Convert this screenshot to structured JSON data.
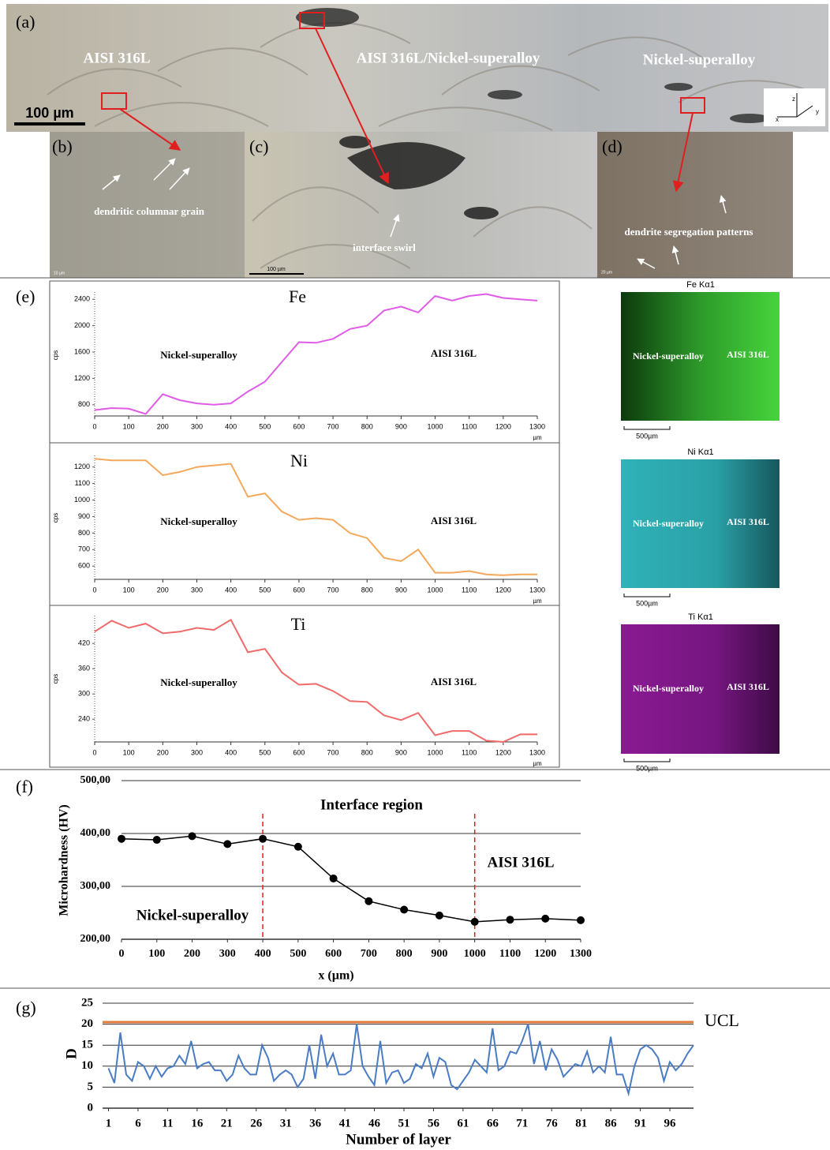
{
  "micrographs": [
    {
      "label": "(a)",
      "texts": [
        "AISI 316L",
        "AISI 316L/Nickel-superalloy",
        "Nickel-superalloy"
      ],
      "scale": "100 µm",
      "axes": [
        "z",
        "x",
        "y"
      ]
    },
    {
      "label": "(b)",
      "texts": [
        "dendritic columnar grain"
      ],
      "scale": "10 µm"
    },
    {
      "label": "(c)",
      "texts": [
        "interface swirl"
      ],
      "scale": "100 µm"
    },
    {
      "label": "(d)",
      "texts": [
        "dendrite segregation patterns"
      ],
      "scale": "20 µm"
    }
  ],
  "eds_maps": [
    {
      "title": "Fe Kα1",
      "texts": [
        "Nickel-superalloy",
        "AISI 316L"
      ],
      "scale": "500µm"
    },
    {
      "title": "Ni Kα1",
      "texts": [
        "Nickel-superalloy",
        "AISI 316L"
      ],
      "scale": "500µm"
    },
    {
      "title": "Ti Kα1",
      "texts": [
        "Nickel-superalloy",
        "AISI 316L"
      ],
      "scale": "500µm"
    }
  ],
  "panel_labels": [
    "(e)",
    "(f)",
    "(g)"
  ],
  "chart_data": [
    {
      "type": "line",
      "title": "Fe",
      "y_label": "cps",
      "x_unit": "µm",
      "annotations": [
        "Nickel-superalloy",
        "AISI 316L"
      ],
      "color": "#e05ce6",
      "x": [
        0,
        50,
        100,
        150,
        200,
        250,
        300,
        350,
        400,
        450,
        500,
        550,
        600,
        650,
        700,
        750,
        800,
        850,
        900,
        950,
        1000,
        1050,
        1100,
        1150,
        1200,
        1250,
        1300
      ],
      "values": [
        720,
        750,
        740,
        660,
        960,
        870,
        820,
        800,
        820,
        1000,
        1150,
        1450,
        1750,
        1740,
        1800,
        1950,
        2000,
        2230,
        2290,
        2200,
        2450,
        2380,
        2450,
        2480,
        2420,
        2400,
        2380
      ],
      "xlim": [
        0,
        1300
      ],
      "xticks": [
        0,
        100,
        200,
        300,
        400,
        500,
        600,
        700,
        800,
        900,
        1000,
        1100,
        1200,
        1300
      ],
      "ylim": [
        630,
        2510
      ],
      "yticks": [
        800,
        1200,
        1600,
        2000,
        2400
      ],
      "grid": false
    },
    {
      "type": "line",
      "title": "Ni",
      "y_label": "cps",
      "x_unit": "µm",
      "annotations": [
        "Nickel-superalloy",
        "AISI 316L"
      ],
      "color": "#f5a85a",
      "x": [
        0,
        50,
        100,
        150,
        200,
        250,
        300,
        350,
        400,
        450,
        500,
        550,
        600,
        650,
        700,
        750,
        800,
        850,
        900,
        950,
        1000,
        1050,
        1100,
        1150,
        1200,
        1250,
        1300
      ],
      "values": [
        1250,
        1240,
        1240,
        1240,
        1150,
        1170,
        1200,
        1210,
        1220,
        1020,
        1040,
        930,
        880,
        890,
        880,
        800,
        770,
        650,
        630,
        700,
        560,
        560,
        570,
        550,
        545,
        550,
        550
      ],
      "xlim": [
        0,
        1300
      ],
      "xticks": [
        0,
        100,
        200,
        300,
        400,
        500,
        600,
        700,
        800,
        900,
        1000,
        1100,
        1200,
        1300
      ],
      "ylim": [
        520,
        1270
      ],
      "yticks": [
        600,
        700,
        800,
        900,
        1000,
        1100,
        1200
      ],
      "grid": false
    },
    {
      "type": "line",
      "title": "Ti",
      "y_label": "cps",
      "x_unit": "µm",
      "annotations": [
        "Nickel-superalloy",
        "AISI 316L"
      ],
      "color": "#f06a6a",
      "x": [
        0,
        50,
        100,
        150,
        200,
        250,
        300,
        350,
        400,
        450,
        500,
        550,
        600,
        650,
        700,
        750,
        800,
        850,
        900,
        950,
        1000,
        1050,
        1100,
        1150,
        1200,
        1250,
        1300
      ],
      "values": [
        448,
        474,
        457,
        467,
        444,
        448,
        457,
        452,
        476,
        399,
        407,
        351,
        322,
        324,
        307,
        283,
        281,
        249,
        238,
        255,
        202,
        212,
        212,
        189,
        186,
        204,
        204
      ],
      "xlim": [
        0,
        1300
      ],
      "xticks": [
        0,
        100,
        200,
        300,
        400,
        500,
        600,
        700,
        800,
        900,
        1000,
        1100,
        1200,
        1300
      ],
      "ylim": [
        186,
        486
      ],
      "yticks": [
        240,
        300,
        360,
        420
      ],
      "grid": false
    },
    {
      "type": "line",
      "x_label": "x (µm)",
      "y_label": "Microhardness (HV)",
      "annotations": [
        "Interface region",
        "AISI 316L",
        "Nickel-superalloy"
      ],
      "color": "#000000",
      "markers": true,
      "x": [
        0,
        100,
        200,
        300,
        400,
        500,
        600,
        700,
        800,
        900,
        1000,
        1100,
        1200,
        1300
      ],
      "values": [
        390,
        388,
        395,
        380,
        390,
        375,
        315,
        272,
        256,
        245,
        233,
        237,
        239,
        236
      ],
      "vlines": [
        400,
        1000
      ],
      "vline_color": "#e02020",
      "xlim": [
        0,
        1300
      ],
      "xticks": [
        0,
        100,
        200,
        300,
        400,
        500,
        600,
        700,
        800,
        900,
        1000,
        1100,
        1200,
        1300
      ],
      "ylim": [
        200,
        500
      ],
      "yticks": [
        {
          "value": 200,
          "label": "200,00"
        },
        {
          "value": 300,
          "label": "300,00"
        },
        {
          "value": 400,
          "label": "400,00"
        },
        {
          "value": 500,
          "label": "500,00"
        }
      ],
      "grid": true
    },
    {
      "type": "line",
      "x_label": "Number of layer",
      "y_label": "D",
      "color": "#4a7cc4",
      "ucl": {
        "label": "UCL",
        "value": 20.5,
        "color": "#e07b39"
      },
      "x": [
        1,
        2,
        3,
        4,
        5,
        6,
        7,
        8,
        9,
        10,
        11,
        12,
        13,
        14,
        15,
        16,
        17,
        18,
        19,
        20,
        21,
        22,
        23,
        24,
        25,
        26,
        27,
        28,
        29,
        30,
        31,
        32,
        33,
        34,
        35,
        36,
        37,
        38,
        39,
        40,
        41,
        42,
        43,
        44,
        45,
        46,
        47,
        48,
        49,
        50,
        51,
        52,
        53,
        54,
        55,
        56,
        57,
        58,
        59,
        60,
        61,
        62,
        63,
        64,
        65,
        66,
        67,
        68,
        69,
        70,
        71,
        72,
        73,
        74,
        75,
        76,
        77,
        78,
        79,
        80,
        81,
        82,
        83,
        84,
        85,
        86,
        87,
        88,
        89,
        90,
        91,
        92,
        93,
        94,
        95,
        96,
        97,
        98,
        99,
        100
      ],
      "values": [
        9.5,
        6,
        18,
        8,
        6.5,
        11,
        10,
        7,
        10,
        7.5,
        9.5,
        10,
        12.5,
        10.5,
        16,
        9.5,
        10.5,
        11,
        9,
        9,
        6.5,
        8,
        12.5,
        9.5,
        8,
        8,
        15,
        12,
        6.5,
        8,
        9,
        8,
        5,
        7,
        15,
        7,
        17.5,
        10,
        13,
        8,
        8,
        9,
        20,
        10,
        7.5,
        5.5,
        16,
        6,
        8.5,
        9,
        6,
        7,
        10.5,
        9.5,
        13,
        7.5,
        12,
        11,
        5.5,
        4.5,
        6.5,
        8.5,
        11.5,
        10,
        8.5,
        19,
        9,
        10,
        13.5,
        13,
        16,
        20,
        10.5,
        16,
        9,
        14,
        11.5,
        7.5,
        9,
        10.5,
        10,
        13.5,
        8.5,
        10,
        8.5,
        17,
        8,
        8,
        3.5,
        10,
        14,
        15,
        14,
        12,
        6.5,
        11,
        9,
        10.5,
        13,
        15
      ],
      "xlim": [
        0,
        100
      ],
      "xticks": [
        1,
        6,
        11,
        16,
        21,
        26,
        31,
        36,
        41,
        46,
        51,
        56,
        61,
        66,
        71,
        76,
        81,
        86,
        91,
        96
      ],
      "ylim": [
        0,
        25
      ],
      "yticks": [
        0,
        5,
        10,
        15,
        20,
        25
      ],
      "grid": true
    }
  ]
}
